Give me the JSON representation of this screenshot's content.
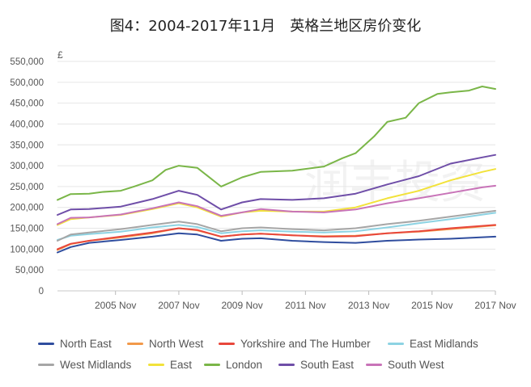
{
  "chart_data": {
    "type": "line",
    "title": "图4：2004-2017年11月　英格兰地区房价变化",
    "ylabel": "£",
    "xlabel": "",
    "ylim": [
      0,
      550000
    ],
    "yticks": [
      0,
      50000,
      100000,
      150000,
      200000,
      250000,
      300000,
      350000,
      400000,
      450000,
      500000,
      550000
    ],
    "ytick_labels": [
      "0",
      "50,000",
      "100,000",
      "150,000",
      "200,000",
      "250,000",
      "300,000",
      "350,000",
      "400,000",
      "450,000",
      "500,000",
      "550,000"
    ],
    "xlim": [
      "2004-01",
      "2017-11"
    ],
    "xticks": [
      "2005-11",
      "2007-11",
      "2009-11",
      "2011-11",
      "2013-11",
      "2015-11",
      "2017-11"
    ],
    "xtick_labels": [
      "2005 Nov",
      "2007 Nov",
      "2009 Nov",
      "2011 Nov",
      "2013 Nov",
      "2015 Nov",
      "2017 Nov"
    ],
    "grid": true,
    "legend_position": "bottom",
    "watermark": "润丰投资",
    "series": [
      {
        "name": "North East",
        "color": "#2f4d9e",
        "points": [
          [
            "2004-01",
            92000
          ],
          [
            "2004-06",
            105000
          ],
          [
            "2005-01",
            115000
          ],
          [
            "2006-01",
            122000
          ],
          [
            "2007-01",
            130000
          ],
          [
            "2007-11",
            138000
          ],
          [
            "2008-06",
            135000
          ],
          [
            "2009-03",
            120000
          ],
          [
            "2009-11",
            125000
          ],
          [
            "2010-06",
            126000
          ],
          [
            "2011-06",
            120000
          ],
          [
            "2012-06",
            117000
          ],
          [
            "2013-06",
            115000
          ],
          [
            "2014-06",
            120000
          ],
          [
            "2015-06",
            123000
          ],
          [
            "2016-06",
            125000
          ],
          [
            "2017-11",
            130000
          ]
        ]
      },
      {
        "name": "North West",
        "color": "#f2994a",
        "points": [
          [
            "2004-01",
            98000
          ],
          [
            "2004-06",
            112000
          ],
          [
            "2005-01",
            120000
          ],
          [
            "2006-01",
            128000
          ],
          [
            "2007-01",
            138000
          ],
          [
            "2007-11",
            150000
          ],
          [
            "2008-06",
            145000
          ],
          [
            "2009-03",
            130000
          ],
          [
            "2009-11",
            135000
          ],
          [
            "2010-06",
            137000
          ],
          [
            "2011-06",
            133000
          ],
          [
            "2012-06",
            131000
          ],
          [
            "2013-06",
            132000
          ],
          [
            "2014-06",
            138000
          ],
          [
            "2015-06",
            142000
          ],
          [
            "2016-06",
            148000
          ],
          [
            "2017-11",
            157000
          ]
        ]
      },
      {
        "name": "Yorkshire and The Humber",
        "color": "#e8473b",
        "points": [
          [
            "2004-01",
            100000
          ],
          [
            "2004-06",
            113000
          ],
          [
            "2005-01",
            120000
          ],
          [
            "2006-01",
            130000
          ],
          [
            "2007-01",
            140000
          ],
          [
            "2007-11",
            150000
          ],
          [
            "2008-06",
            146000
          ],
          [
            "2009-03",
            130000
          ],
          [
            "2009-11",
            135000
          ],
          [
            "2010-06",
            137000
          ],
          [
            "2011-06",
            133000
          ],
          [
            "2012-06",
            130000
          ],
          [
            "2013-06",
            131000
          ],
          [
            "2014-06",
            138000
          ],
          [
            "2015-06",
            143000
          ],
          [
            "2016-06",
            150000
          ],
          [
            "2017-11",
            158000
          ]
        ]
      },
      {
        "name": "East Midlands",
        "color": "#8dd3e3",
        "points": [
          [
            "2004-01",
            122000
          ],
          [
            "2004-06",
            132000
          ],
          [
            "2005-01",
            136000
          ],
          [
            "2006-01",
            142000
          ],
          [
            "2007-01",
            152000
          ],
          [
            "2007-11",
            158000
          ],
          [
            "2008-06",
            153000
          ],
          [
            "2009-03",
            138000
          ],
          [
            "2009-11",
            143000
          ],
          [
            "2010-06",
            145000
          ],
          [
            "2011-06",
            142000
          ],
          [
            "2012-06",
            140000
          ],
          [
            "2013-06",
            143000
          ],
          [
            "2014-06",
            152000
          ],
          [
            "2015-06",
            162000
          ],
          [
            "2016-06",
            172000
          ],
          [
            "2017-11",
            187000
          ]
        ]
      },
      {
        "name": "West Midlands",
        "color": "#a6a6a6",
        "points": [
          [
            "2004-01",
            120000
          ],
          [
            "2004-06",
            135000
          ],
          [
            "2005-01",
            140000
          ],
          [
            "2006-01",
            148000
          ],
          [
            "2007-01",
            158000
          ],
          [
            "2007-11",
            166000
          ],
          [
            "2008-06",
            160000
          ],
          [
            "2009-03",
            143000
          ],
          [
            "2009-11",
            150000
          ],
          [
            "2010-06",
            152000
          ],
          [
            "2011-06",
            148000
          ],
          [
            "2012-06",
            145000
          ],
          [
            "2013-06",
            150000
          ],
          [
            "2014-06",
            160000
          ],
          [
            "2015-06",
            168000
          ],
          [
            "2016-06",
            178000
          ],
          [
            "2017-11",
            192000
          ]
        ]
      },
      {
        "name": "East",
        "color": "#f2e23a",
        "points": [
          [
            "2004-01",
            158000
          ],
          [
            "2004-06",
            172000
          ],
          [
            "2005-01",
            176000
          ],
          [
            "2006-01",
            182000
          ],
          [
            "2007-01",
            196000
          ],
          [
            "2007-11",
            210000
          ],
          [
            "2008-06",
            200000
          ],
          [
            "2009-03",
            178000
          ],
          [
            "2009-11",
            188000
          ],
          [
            "2010-06",
            192000
          ],
          [
            "2011-06",
            190000
          ],
          [
            "2012-06",
            190000
          ],
          [
            "2013-06",
            200000
          ],
          [
            "2014-06",
            222000
          ],
          [
            "2015-06",
            240000
          ],
          [
            "2016-06",
            265000
          ],
          [
            "2017-06",
            285000
          ],
          [
            "2017-11",
            292000
          ]
        ]
      },
      {
        "name": "London",
        "color": "#7ab648",
        "points": [
          [
            "2004-01",
            218000
          ],
          [
            "2004-06",
            232000
          ],
          [
            "2005-01",
            233000
          ],
          [
            "2005-06",
            237000
          ],
          [
            "2006-01",
            240000
          ],
          [
            "2006-06",
            250000
          ],
          [
            "2007-01",
            265000
          ],
          [
            "2007-06",
            290000
          ],
          [
            "2007-11",
            300000
          ],
          [
            "2008-06",
            295000
          ],
          [
            "2009-03",
            250000
          ],
          [
            "2009-11",
            272000
          ],
          [
            "2010-06",
            285000
          ],
          [
            "2011-06",
            288000
          ],
          [
            "2012-06",
            298000
          ],
          [
            "2013-01",
            318000
          ],
          [
            "2013-06",
            330000
          ],
          [
            "2014-01",
            370000
          ],
          [
            "2014-06",
            405000
          ],
          [
            "2015-01",
            415000
          ],
          [
            "2015-06",
            450000
          ],
          [
            "2016-01",
            472000
          ],
          [
            "2016-06",
            476000
          ],
          [
            "2017-01",
            480000
          ],
          [
            "2017-06",
            490000
          ],
          [
            "2017-11",
            484000
          ]
        ]
      },
      {
        "name": "South East",
        "color": "#6f4ea8",
        "points": [
          [
            "2004-01",
            182000
          ],
          [
            "2004-06",
            195000
          ],
          [
            "2005-01",
            196000
          ],
          [
            "2006-01",
            202000
          ],
          [
            "2007-01",
            220000
          ],
          [
            "2007-11",
            240000
          ],
          [
            "2008-06",
            230000
          ],
          [
            "2009-03",
            195000
          ],
          [
            "2009-11",
            212000
          ],
          [
            "2010-06",
            220000
          ],
          [
            "2011-06",
            218000
          ],
          [
            "2012-06",
            222000
          ],
          [
            "2013-06",
            233000
          ],
          [
            "2014-06",
            255000
          ],
          [
            "2015-06",
            275000
          ],
          [
            "2016-06",
            305000
          ],
          [
            "2017-06",
            320000
          ],
          [
            "2017-11",
            326000
          ]
        ]
      },
      {
        "name": "South West",
        "color": "#c873b8",
        "points": [
          [
            "2004-01",
            160000
          ],
          [
            "2004-06",
            175000
          ],
          [
            "2005-01",
            176000
          ],
          [
            "2006-01",
            183000
          ],
          [
            "2007-01",
            198000
          ],
          [
            "2007-11",
            212000
          ],
          [
            "2008-06",
            203000
          ],
          [
            "2009-03",
            180000
          ],
          [
            "2009-11",
            188000
          ],
          [
            "2010-06",
            196000
          ],
          [
            "2011-06",
            190000
          ],
          [
            "2012-06",
            188000
          ],
          [
            "2013-06",
            195000
          ],
          [
            "2014-06",
            210000
          ],
          [
            "2015-06",
            222000
          ],
          [
            "2016-06",
            235000
          ],
          [
            "2017-06",
            248000
          ],
          [
            "2017-11",
            252000
          ]
        ]
      }
    ]
  }
}
